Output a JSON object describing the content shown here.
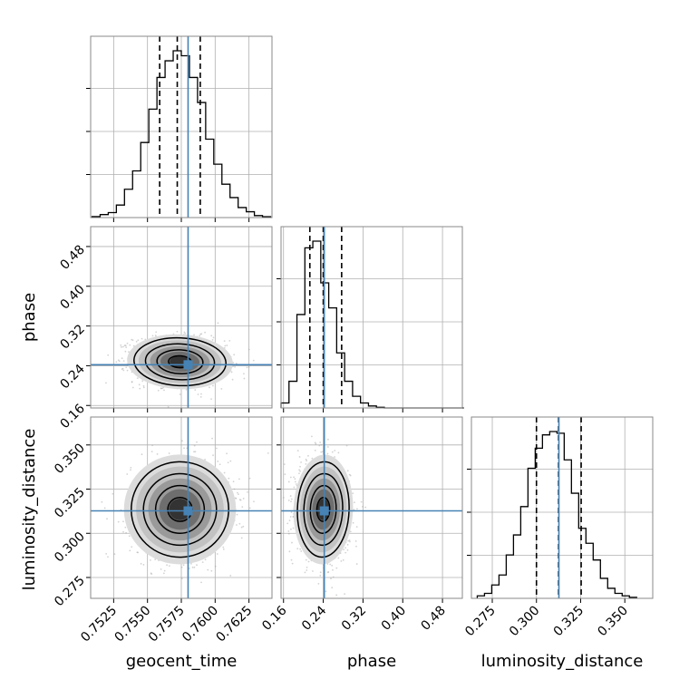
{
  "chart_data": {
    "type": "corner",
    "grid": true,
    "parameters": [
      {
        "name": "geocent_time",
        "xlabel": "geocent_time",
        "range": [
          0.7508,
          0.7642
        ],
        "ticks": [
          0.7525,
          0.755,
          0.7575,
          0.76,
          0.7625
        ],
        "tick_labels": [
          "0.7525",
          "0.7550",
          "0.7575",
          "0.7600",
          "0.7625"
        ],
        "truth": 0.758,
        "quantiles": [
          0.7559,
          0.7572,
          0.7589
        ],
        "histogram": {
          "bin_edges": [
            0.7509,
            0.7515,
            0.7521,
            0.7527,
            0.7533,
            0.7539,
            0.7545,
            0.7551,
            0.7557,
            0.7563,
            0.7569,
            0.7575,
            0.7581,
            0.7587,
            0.7593,
            0.7599,
            0.7605,
            0.7611,
            0.7617,
            0.7623,
            0.7629,
            0.7635,
            0.7641
          ],
          "density": [
            0.006,
            0.018,
            0.03,
            0.075,
            0.17,
            0.28,
            0.45,
            0.65,
            0.84,
            0.94,
            1.0,
            0.97,
            0.84,
            0.69,
            0.47,
            0.32,
            0.2,
            0.12,
            0.06,
            0.035,
            0.012,
            0.005
          ]
        }
      },
      {
        "name": "phase",
        "xlabel": "phase",
        "ylabel": "phase",
        "range": [
          0.155,
          0.52
        ],
        "ticks": [
          0.16,
          0.24,
          0.32,
          0.4,
          0.48
        ],
        "tick_labels": [
          "0.16",
          "0.24",
          "0.32",
          "0.40",
          "0.48"
        ],
        "truth": 0.242,
        "quantiles": [
          0.213,
          0.24,
          0.277
        ],
        "histogram": {
          "bin_edges": [
            0.155,
            0.171,
            0.187,
            0.203,
            0.219,
            0.235,
            0.251,
            0.267,
            0.283,
            0.299,
            0.315,
            0.331,
            0.347,
            0.363,
            0.379,
            0.395,
            0.411,
            0.427,
            0.443,
            0.459,
            0.475,
            0.491,
            0.507,
            0.523
          ],
          "density": [
            0.03,
            0.16,
            0.56,
            0.96,
            1.0,
            0.75,
            0.6,
            0.33,
            0.16,
            0.07,
            0.03,
            0.012,
            0.004,
            0,
            0,
            0,
            0,
            0,
            0,
            0,
            0,
            0,
            0
          ]
        }
      },
      {
        "name": "luminosity_distance",
        "xlabel": "luminosity_distance",
        "ylabel": "luminosity_distance",
        "range": [
          0.2632,
          0.3658
        ],
        "ticks": [
          0.275,
          0.3,
          0.325,
          0.35
        ],
        "tick_labels": [
          "0.275",
          "0.300",
          "0.325",
          "0.350"
        ],
        "truth": 0.3127,
        "quantiles": [
          0.3,
          0.3125,
          0.3253
        ],
        "histogram": {
          "bin_edges": [
            0.2665,
            0.2706,
            0.2747,
            0.2788,
            0.2829,
            0.287,
            0.2911,
            0.2952,
            0.2993,
            0.3034,
            0.3075,
            0.3116,
            0.3157,
            0.3198,
            0.3239,
            0.328,
            0.3321,
            0.3362,
            0.3403,
            0.3444,
            0.3485,
            0.3526,
            0.3567
          ],
          "density": [
            0.015,
            0.03,
            0.08,
            0.14,
            0.26,
            0.38,
            0.55,
            0.78,
            0.9,
            0.98,
            1.0,
            0.99,
            0.83,
            0.63,
            0.42,
            0.33,
            0.23,
            0.12,
            0.06,
            0.03,
            0.015,
            0.006
          ]
        }
      }
    ],
    "posterior_summary": [
      {
        "x": "geocent_time",
        "y": "phase",
        "center": [
          0.7574,
          0.248
        ],
        "spread": [
          0.0017,
          0.024
        ],
        "correlation": -0.1
      },
      {
        "x": "geocent_time",
        "y": "luminosity_distance",
        "center": [
          0.7574,
          0.3135
        ],
        "spread": [
          0.0018,
          0.0135
        ],
        "correlation": 0.05
      },
      {
        "x": "phase",
        "y": "luminosity_distance",
        "center": [
          0.24,
          0.3135
        ],
        "spread": [
          0.026,
          0.0135
        ],
        "correlation": -0.08
      }
    ],
    "truth_color": "#4682b4",
    "hist_color": "#000000",
    "quantile_style": "dashed"
  }
}
